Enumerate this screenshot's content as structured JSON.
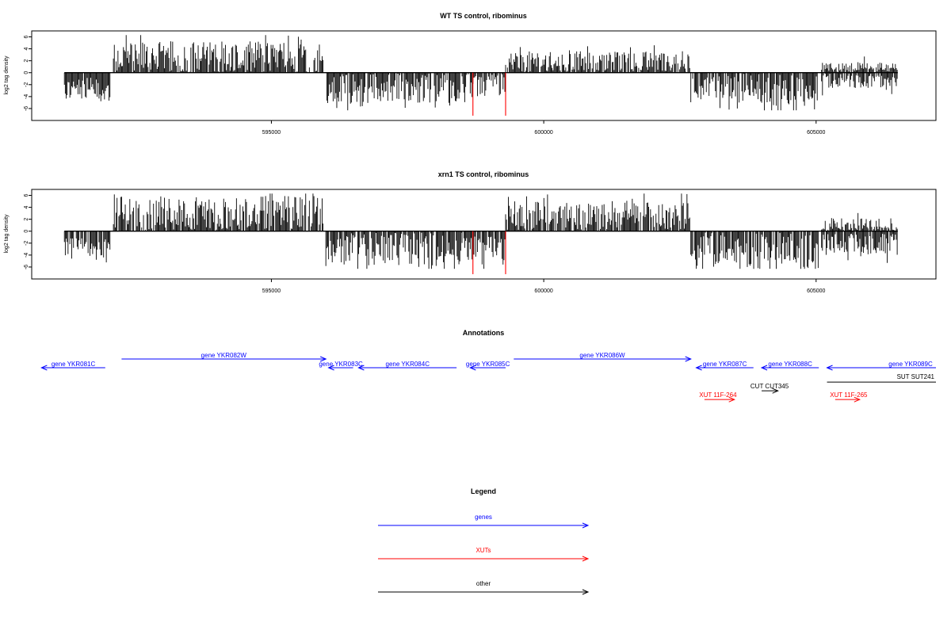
{
  "chart_data": [
    {
      "type": "bar",
      "title": "WT TS control, ribominus",
      "ylabel": "log2 tag density",
      "ylim": [
        -8,
        7
      ],
      "xlim": [
        590600,
        607200
      ],
      "yticks": [
        6,
        4,
        2,
        0,
        -2,
        -4,
        -6
      ],
      "xticks": [
        "595000",
        "600000",
        "605000"
      ],
      "grid": false,
      "segments": [
        {
          "x0": 591200,
          "x1": 592050,
          "sign": -1,
          "amp": 2.8,
          "var": 2.0
        },
        {
          "x0": 592100,
          "x1": 595950,
          "sign": 1,
          "amp": 2.5,
          "var": 2.8
        },
        {
          "x0": 596000,
          "x1": 598500,
          "sign": -1,
          "amp": 2.6,
          "var": 2.6
        },
        {
          "x0": 598500,
          "x1": 599300,
          "sign": -1,
          "amp": 2.0,
          "var": 2.0
        },
        {
          "x0": 599300,
          "x1": 602700,
          "sign": 1,
          "amp": 1.8,
          "var": 1.8
        },
        {
          "x0": 602700,
          "x1": 603900,
          "sign": -1,
          "amp": 2.6,
          "var": 2.4
        },
        {
          "x0": 603900,
          "x1": 605050,
          "sign": -1,
          "amp": 3.0,
          "var": 2.8
        },
        {
          "x0": 605100,
          "x1": 606500,
          "sign": -1,
          "amp": 1.2,
          "var": 1.4
        },
        {
          "x0": 605100,
          "x1": 606500,
          "sign": 1,
          "amp": 0.5,
          "var": 1.2
        }
      ],
      "highlights": [
        {
          "x": 598700,
          "y": -7.2,
          "color": "#ff0000"
        },
        {
          "x": 599300,
          "y": -7.2,
          "color": "#ff0000"
        }
      ]
    },
    {
      "type": "bar",
      "title": "xrn1 TS control, ribominus",
      "ylabel": "log2 tag density",
      "ylim": [
        -8,
        7
      ],
      "xlim": [
        590600,
        607200
      ],
      "yticks": [
        6,
        4,
        2,
        0,
        -2,
        -4,
        -6
      ],
      "xticks": [
        "595000",
        "600000",
        "605000"
      ],
      "grid": false,
      "segments": [
        {
          "x0": 591200,
          "x1": 592050,
          "sign": -1,
          "amp": 3.0,
          "var": 1.8
        },
        {
          "x0": 592100,
          "x1": 595950,
          "sign": 1,
          "amp": 3.0,
          "var": 2.9
        },
        {
          "x0": 596000,
          "x1": 598500,
          "sign": -1,
          "amp": 3.0,
          "var": 3.0
        },
        {
          "x0": 598500,
          "x1": 599300,
          "sign": -1,
          "amp": 3.2,
          "var": 2.4
        },
        {
          "x0": 599300,
          "x1": 602700,
          "sign": 1,
          "amp": 2.6,
          "var": 2.4
        },
        {
          "x0": 602700,
          "x1": 603900,
          "sign": -1,
          "amp": 3.2,
          "var": 3.0
        },
        {
          "x0": 603900,
          "x1": 605050,
          "sign": -1,
          "amp": 3.4,
          "var": 3.2
        },
        {
          "x0": 605100,
          "x1": 606500,
          "sign": -1,
          "amp": 2.2,
          "var": 1.8
        },
        {
          "x0": 605100,
          "x1": 606500,
          "sign": 1,
          "amp": 0.6,
          "var": 1.6
        }
      ],
      "highlights": [
        {
          "x": 598700,
          "y": -7.2,
          "color": "#ff0000"
        },
        {
          "x": 599300,
          "y": -7.2,
          "color": "#ff0000"
        }
      ]
    }
  ],
  "annotations": {
    "title": "Annotations",
    "features": [
      {
        "label": "gene YKR081C",
        "kind": "gene",
        "strand": "-",
        "start": 590780,
        "end": 591950,
        "row": 0,
        "color": "#0000ff"
      },
      {
        "label": "gene YKR082W",
        "kind": "gene",
        "strand": "+",
        "start": 592250,
        "end": 596000,
        "row": -1,
        "color": "#0000ff"
      },
      {
        "label": "gene YKR083C",
        "kind": "gene",
        "strand": "-",
        "start": 596050,
        "end": 596500,
        "row": 0,
        "color": "#0000ff"
      },
      {
        "label": "gene YKR084C",
        "kind": "gene",
        "strand": "-",
        "start": 596600,
        "end": 598400,
        "row": 0,
        "color": "#0000ff"
      },
      {
        "label": "gene YKR085C",
        "kind": "gene",
        "strand": "-",
        "start": 598650,
        "end": 599300,
        "row": 0,
        "color": "#0000ff"
      },
      {
        "label": "gene YKR086W",
        "kind": "gene",
        "strand": "+",
        "start": 599450,
        "end": 602700,
        "row": -1,
        "color": "#0000ff"
      },
      {
        "label": "gene YKR087C",
        "kind": "gene",
        "strand": "-",
        "start": 602800,
        "end": 603850,
        "row": 0,
        "color": "#0000ff"
      },
      {
        "label": "gene YKR088C",
        "kind": "gene",
        "strand": "-",
        "start": 604000,
        "end": 605050,
        "row": 0,
        "color": "#0000ff"
      },
      {
        "label": "gene YKR089C",
        "kind": "gene",
        "strand": "-",
        "start": 605200,
        "end": 607200,
        "row": 0,
        "color": "#0000ff"
      },
      {
        "label": "SUT SUT241",
        "kind": "other",
        "strand": "none",
        "start": 605200,
        "end": 607200,
        "row": 1.65,
        "color": "#000000"
      },
      {
        "label": "CUT CUT345",
        "kind": "other",
        "strand": "+",
        "start": 604000,
        "end": 604300,
        "row": 2.65,
        "color": "#000000"
      },
      {
        "label": "XUT 11F-264",
        "kind": "xut",
        "strand": "+",
        "start": 602950,
        "end": 603500,
        "row": 3.65,
        "color": "#ff0000"
      },
      {
        "label": "XUT 11F-265",
        "kind": "xut",
        "strand": "+",
        "start": 605350,
        "end": 605800,
        "row": 3.65,
        "color": "#ff0000"
      }
    ]
  },
  "legend": {
    "title": "Legend",
    "items": [
      {
        "label": "genes",
        "color": "#0000ff"
      },
      {
        "label": "XUTs",
        "color": "#ff0000"
      },
      {
        "label": "other",
        "color": "#000000"
      }
    ]
  }
}
